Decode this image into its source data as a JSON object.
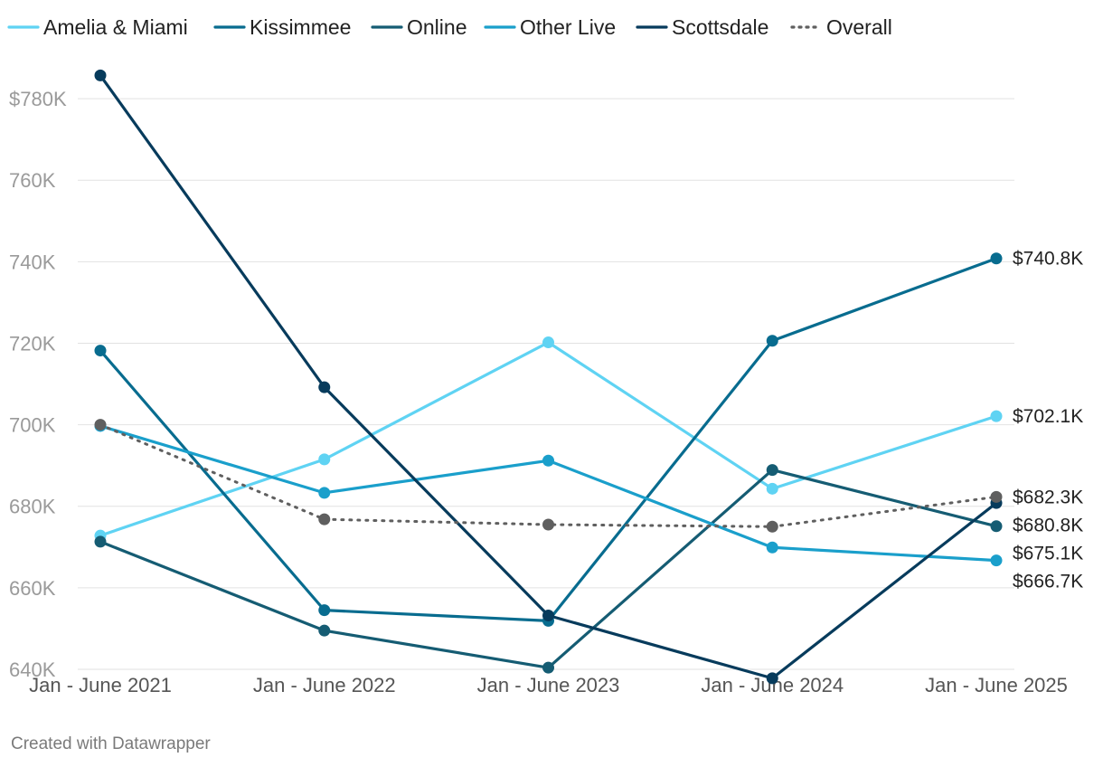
{
  "footer": "Created with Datawrapper",
  "chart_data": {
    "type": "line",
    "title": "",
    "xlabel": "",
    "ylabel": "",
    "categories": [
      "Jan - June 2021",
      "Jan - June 2022",
      "Jan - June 2023",
      "Jan - June 2024",
      "Jan - June 2025"
    ],
    "ylim": [
      636000,
      792000
    ],
    "yticks": [
      640000,
      660000,
      680000,
      700000,
      720000,
      740000,
      760000,
      780000
    ],
    "ytick_labels": [
      "640K",
      "660K",
      "680K",
      "700K",
      "720K",
      "740K",
      "760K",
      "$780K"
    ],
    "grid": true,
    "legend_position": "top",
    "series": [
      {
        "name": "Amelia & Miami",
        "color": "#5fd3f3",
        "dash": false,
        "values": [
          672800,
          691500,
          720200,
          684300,
          702100
        ],
        "end_label": "$702.1K"
      },
      {
        "name": "Kissimmee",
        "color": "#086c8f",
        "dash": false,
        "values": [
          718200,
          654500,
          651900,
          720600,
          740800
        ],
        "end_label": "$740.8K"
      },
      {
        "name": "Online",
        "color": "#155c73",
        "dash": false,
        "values": [
          671300,
          649500,
          640400,
          688900,
          675100
        ],
        "end_label": "$675.1K"
      },
      {
        "name": "Other Live",
        "color": "#1a9fcb",
        "dash": false,
        "values": [
          699700,
          683300,
          691200,
          669900,
          666700
        ],
        "end_label": "$666.7K"
      },
      {
        "name": "Scottsdale",
        "color": "#073b5c",
        "dash": false,
        "values": [
          785700,
          709200,
          653200,
          637800,
          680800
        ],
        "end_label": "$680.8K"
      },
      {
        "name": "Overall",
        "color": "#5f5f5f",
        "dash": true,
        "values": [
          700000,
          676800,
          675500,
          675000,
          682300
        ],
        "end_label": "$682.3K"
      }
    ]
  }
}
